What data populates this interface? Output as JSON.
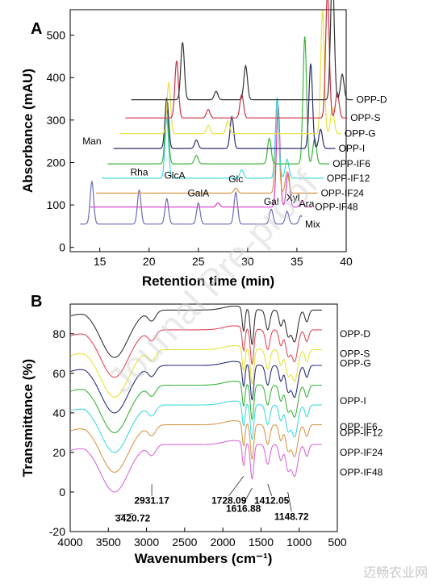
{
  "watermark": "Journal Pre-proof",
  "footer": "迈畅农业网",
  "chart_data": [
    {
      "panel": "A",
      "type": "line",
      "xlabel": "Retention time (min)",
      "ylabel": "Absorbance (mAU)",
      "xlim": [
        12,
        40
      ],
      "ylim": [
        -10,
        560
      ],
      "xticks": [
        15,
        20,
        25,
        30,
        35,
        40
      ],
      "yticks": [
        0,
        100,
        200,
        300,
        400,
        500
      ],
      "grid": false,
      "legend": "right, label at end of each trace",
      "series": [
        {
          "name": "Mix",
          "color": "#6b6bb5",
          "dx": 0,
          "base": 55,
          "peaks": [
            [
              14.2,
              100
            ],
            [
              19.0,
              80
            ],
            [
              21.8,
              60
            ],
            [
              25.0,
              50
            ],
            [
              28.8,
              75
            ],
            [
              32.4,
              35
            ],
            [
              34.0,
              30
            ],
            [
              35.4,
              20
            ]
          ]
        },
        {
          "name": "OPP-IF48",
          "color": "#d43bc9",
          "dx": 1.0,
          "base": 95,
          "peaks": [
            [
              32.1,
              240
            ],
            [
              33.1,
              80
            ],
            [
              34.5,
              15
            ],
            [
              26.0,
              10
            ]
          ]
        },
        {
          "name": "OPP-IF24",
          "color": "#d9994a",
          "dx": 1.6,
          "base": 128,
          "peaks": [
            [
              31.4,
              220
            ],
            [
              32.4,
              50
            ],
            [
              27.2,
              12
            ]
          ]
        },
        {
          "name": "OPP-IF12",
          "color": "#40d9e0",
          "dx": 2.2,
          "base": 163,
          "peaks": [
            [
              19.6,
              140
            ],
            [
              27.2,
              20
            ],
            [
              30.8,
              190
            ],
            [
              31.8,
              45
            ]
          ]
        },
        {
          "name": "OPP-IF6",
          "color": "#3cb43c",
          "dx": 2.8,
          "base": 197,
          "peaks": [
            [
              19.0,
              130
            ],
            [
              22.0,
              20
            ],
            [
              29.4,
              60
            ],
            [
              33.0,
              300
            ],
            [
              34.0,
              60
            ]
          ]
        },
        {
          "name": "OPP-I",
          "color": "#2d2d6e",
          "dx": 3.4,
          "base": 233,
          "peaks": [
            [
              18.4,
              120
            ],
            [
              21.4,
              20
            ],
            [
              25.0,
              75
            ],
            [
              33.0,
              200
            ],
            [
              34.0,
              45
            ]
          ]
        },
        {
          "name": "OPP-G",
          "color": "#e8e23a",
          "dx": 4.0,
          "base": 268,
          "peaks": [
            [
              18.0,
              120
            ],
            [
              22.0,
              20
            ],
            [
              24.0,
              30
            ],
            [
              33.6,
              290
            ],
            [
              34.6,
              60
            ]
          ]
        },
        {
          "name": "OPP-S",
          "color": "#cc3344",
          "dx": 4.6,
          "base": 305,
          "peaks": [
            [
              18.2,
              135
            ],
            [
              21.4,
              20
            ],
            [
              24.8,
              55
            ],
            [
              33.5,
              300
            ],
            [
              34.5,
              60
            ]
          ]
        },
        {
          "name": "OPP-D",
          "color": "#333333",
          "dx": 5.2,
          "base": 348,
          "peaks": [
            [
              18.2,
              135
            ],
            [
              21.6,
              20
            ],
            [
              24.6,
              80
            ],
            [
              33.4,
              310
            ],
            [
              34.4,
              60
            ]
          ]
        }
      ],
      "annotations": [
        {
          "text": "Man",
          "x": 14.2,
          "y": 243
        },
        {
          "text": "Rha",
          "x": 19.0,
          "y": 170
        },
        {
          "text": "GlcA",
          "x": 22.6,
          "y": 162
        },
        {
          "text": "GalA",
          "x": 25.0,
          "y": 120
        },
        {
          "text": "Glc",
          "x": 28.8,
          "y": 153
        },
        {
          "text": "Gal",
          "x": 32.4,
          "y": 100
        },
        {
          "text": "Xyl",
          "x": 34.6,
          "y": 110
        },
        {
          "text": "Ara",
          "x": 36.0,
          "y": 95
        }
      ]
    },
    {
      "panel": "B",
      "type": "line",
      "xlabel": "Wavenumbers (cm⁻¹)",
      "ylabel": "Transmittance (%)",
      "xlim": [
        4000,
        500
      ],
      "ylim": [
        -20,
        95
      ],
      "xticks": [
        4000,
        3500,
        3000,
        2500,
        2000,
        1500,
        1000,
        500
      ],
      "yticks": [
        -20,
        0,
        20,
        40,
        60,
        80
      ],
      "grid": false,
      "legend": "right, label at end of each trace",
      "series": [
        {
          "name": "OPP-D",
          "color": "#333333",
          "offset": 62,
          "end": 80
        },
        {
          "name": "OPP-S",
          "color": "#e04a5a",
          "offset": 52,
          "end": 70
        },
        {
          "name": "OPP-G",
          "color": "#e8e23a",
          "offset": 42,
          "end": 65
        },
        {
          "name": "OPP-I",
          "color": "#2d2d7e",
          "offset": 34,
          "end": 46
        },
        {
          "name": "OPP-IF6",
          "color": "#3cb43c",
          "offset": 24,
          "end": 33
        },
        {
          "name": "OPP-IF12",
          "color": "#40d9e0",
          "offset": 14,
          "end": 30
        },
        {
          "name": "OPP-IF24",
          "color": "#d9994a",
          "offset": 4,
          "end": 20
        },
        {
          "name": "OPP-IF48",
          "color": "#d86bd8",
          "offset": -6,
          "end": 10
        }
      ],
      "annotations": [
        {
          "text": "3420.72",
          "x": 3420.72,
          "y": -12,
          "tx": 3180,
          "ty": -15
        },
        {
          "text": "2931.17",
          "x": 2931.17,
          "y": 4,
          "tx": 2931.17,
          "ty": -6
        },
        {
          "text": "1728.09",
          "x": 1728.09,
          "y": 8,
          "tx": 1920,
          "ty": -6
        },
        {
          "text": "1616.88",
          "x": 1616.88,
          "y": 2,
          "tx": 1730,
          "ty": -10
        },
        {
          "text": "1412.05",
          "x": 1412.05,
          "y": 4,
          "tx": 1360,
          "ty": -6
        },
        {
          "text": "1148.72",
          "x": 1148.72,
          "y": 0,
          "tx": 1100,
          "ty": -14
        }
      ]
    }
  ]
}
